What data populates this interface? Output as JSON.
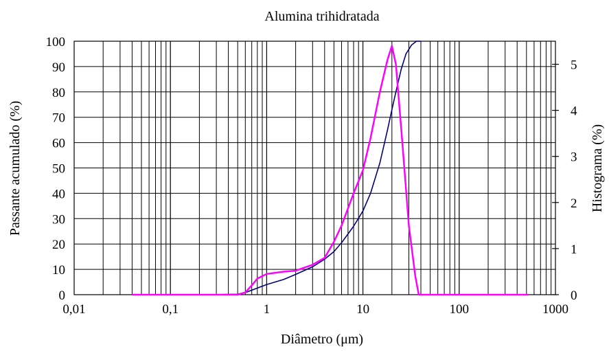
{
  "chart_data": {
    "type": "line",
    "title": "Alumina trihidratada",
    "xlabel": "Diâmetro (μm)",
    "ylabel": "Passante acumulado (%)",
    "y2label": "Histograma (%)",
    "xscale": "log",
    "xlim": [
      0.01,
      1000
    ],
    "ylim": [
      0,
      100
    ],
    "y2lim": [
      0,
      5.5
    ],
    "grid": true,
    "x_tick_labels": [
      "0,01",
      "0,1",
      "1",
      "10",
      "100",
      "1000"
    ],
    "x_tick_values": [
      0.01,
      0.1,
      1,
      10,
      100,
      1000
    ],
    "y_tick_labels": [
      "0",
      "10",
      "20",
      "30",
      "40",
      "50",
      "60",
      "70",
      "80",
      "90",
      "100"
    ],
    "y_tick_values": [
      0,
      10,
      20,
      30,
      40,
      50,
      60,
      70,
      80,
      90,
      100
    ],
    "y2_tick_labels": [
      "0",
      "1",
      "2",
      "3",
      "4",
      "5"
    ],
    "y2_tick_values": [
      0,
      1,
      2,
      3,
      4,
      5
    ],
    "series": [
      {
        "axis": "left",
        "color": "#000080",
        "points": [
          [
            0.25,
            0
          ],
          [
            0.5,
            0.2
          ],
          [
            0.6,
            0.8
          ],
          [
            0.75,
            2.2
          ],
          [
            1.0,
            4.0
          ],
          [
            1.5,
            6.0
          ],
          [
            2.0,
            8.0
          ],
          [
            3.0,
            11.0
          ],
          [
            4.0,
            14.0
          ],
          [
            5.0,
            17.0
          ],
          [
            6.0,
            20.5
          ],
          [
            8.0,
            27.0
          ],
          [
            10.0,
            33.0
          ],
          [
            12.0,
            40.0
          ],
          [
            15.0,
            52.0
          ],
          [
            18.0,
            65.0
          ],
          [
            20.0,
            73.0
          ],
          [
            22.0,
            80.0
          ],
          [
            25.0,
            89.0
          ],
          [
            28.0,
            95.0
          ],
          [
            32.0,
            98.5
          ],
          [
            36.0,
            100.0
          ],
          [
            40.0,
            100.0
          ]
        ]
      },
      {
        "axis": "right",
        "color": "#ff00ff",
        "points": [
          [
            0.04,
            0
          ],
          [
            0.5,
            0
          ],
          [
            0.6,
            0.05
          ],
          [
            0.7,
            0.2
          ],
          [
            0.8,
            0.35
          ],
          [
            1.0,
            0.45
          ],
          [
            1.5,
            0.5
          ],
          [
            2.0,
            0.52
          ],
          [
            3.0,
            0.65
          ],
          [
            4.0,
            0.8
          ],
          [
            5.0,
            1.15
          ],
          [
            6.0,
            1.5
          ],
          [
            8.0,
            2.2
          ],
          [
            10.0,
            2.7
          ],
          [
            12.0,
            3.4
          ],
          [
            15.0,
            4.4
          ],
          [
            18.0,
            5.1
          ],
          [
            20.0,
            5.4
          ],
          [
            22.0,
            5.0
          ],
          [
            25.0,
            3.6
          ],
          [
            30.0,
            1.5
          ],
          [
            35.0,
            0.4
          ],
          [
            38.0,
            0
          ],
          [
            100.0,
            0
          ],
          [
            520.0,
            0
          ]
        ]
      }
    ]
  }
}
